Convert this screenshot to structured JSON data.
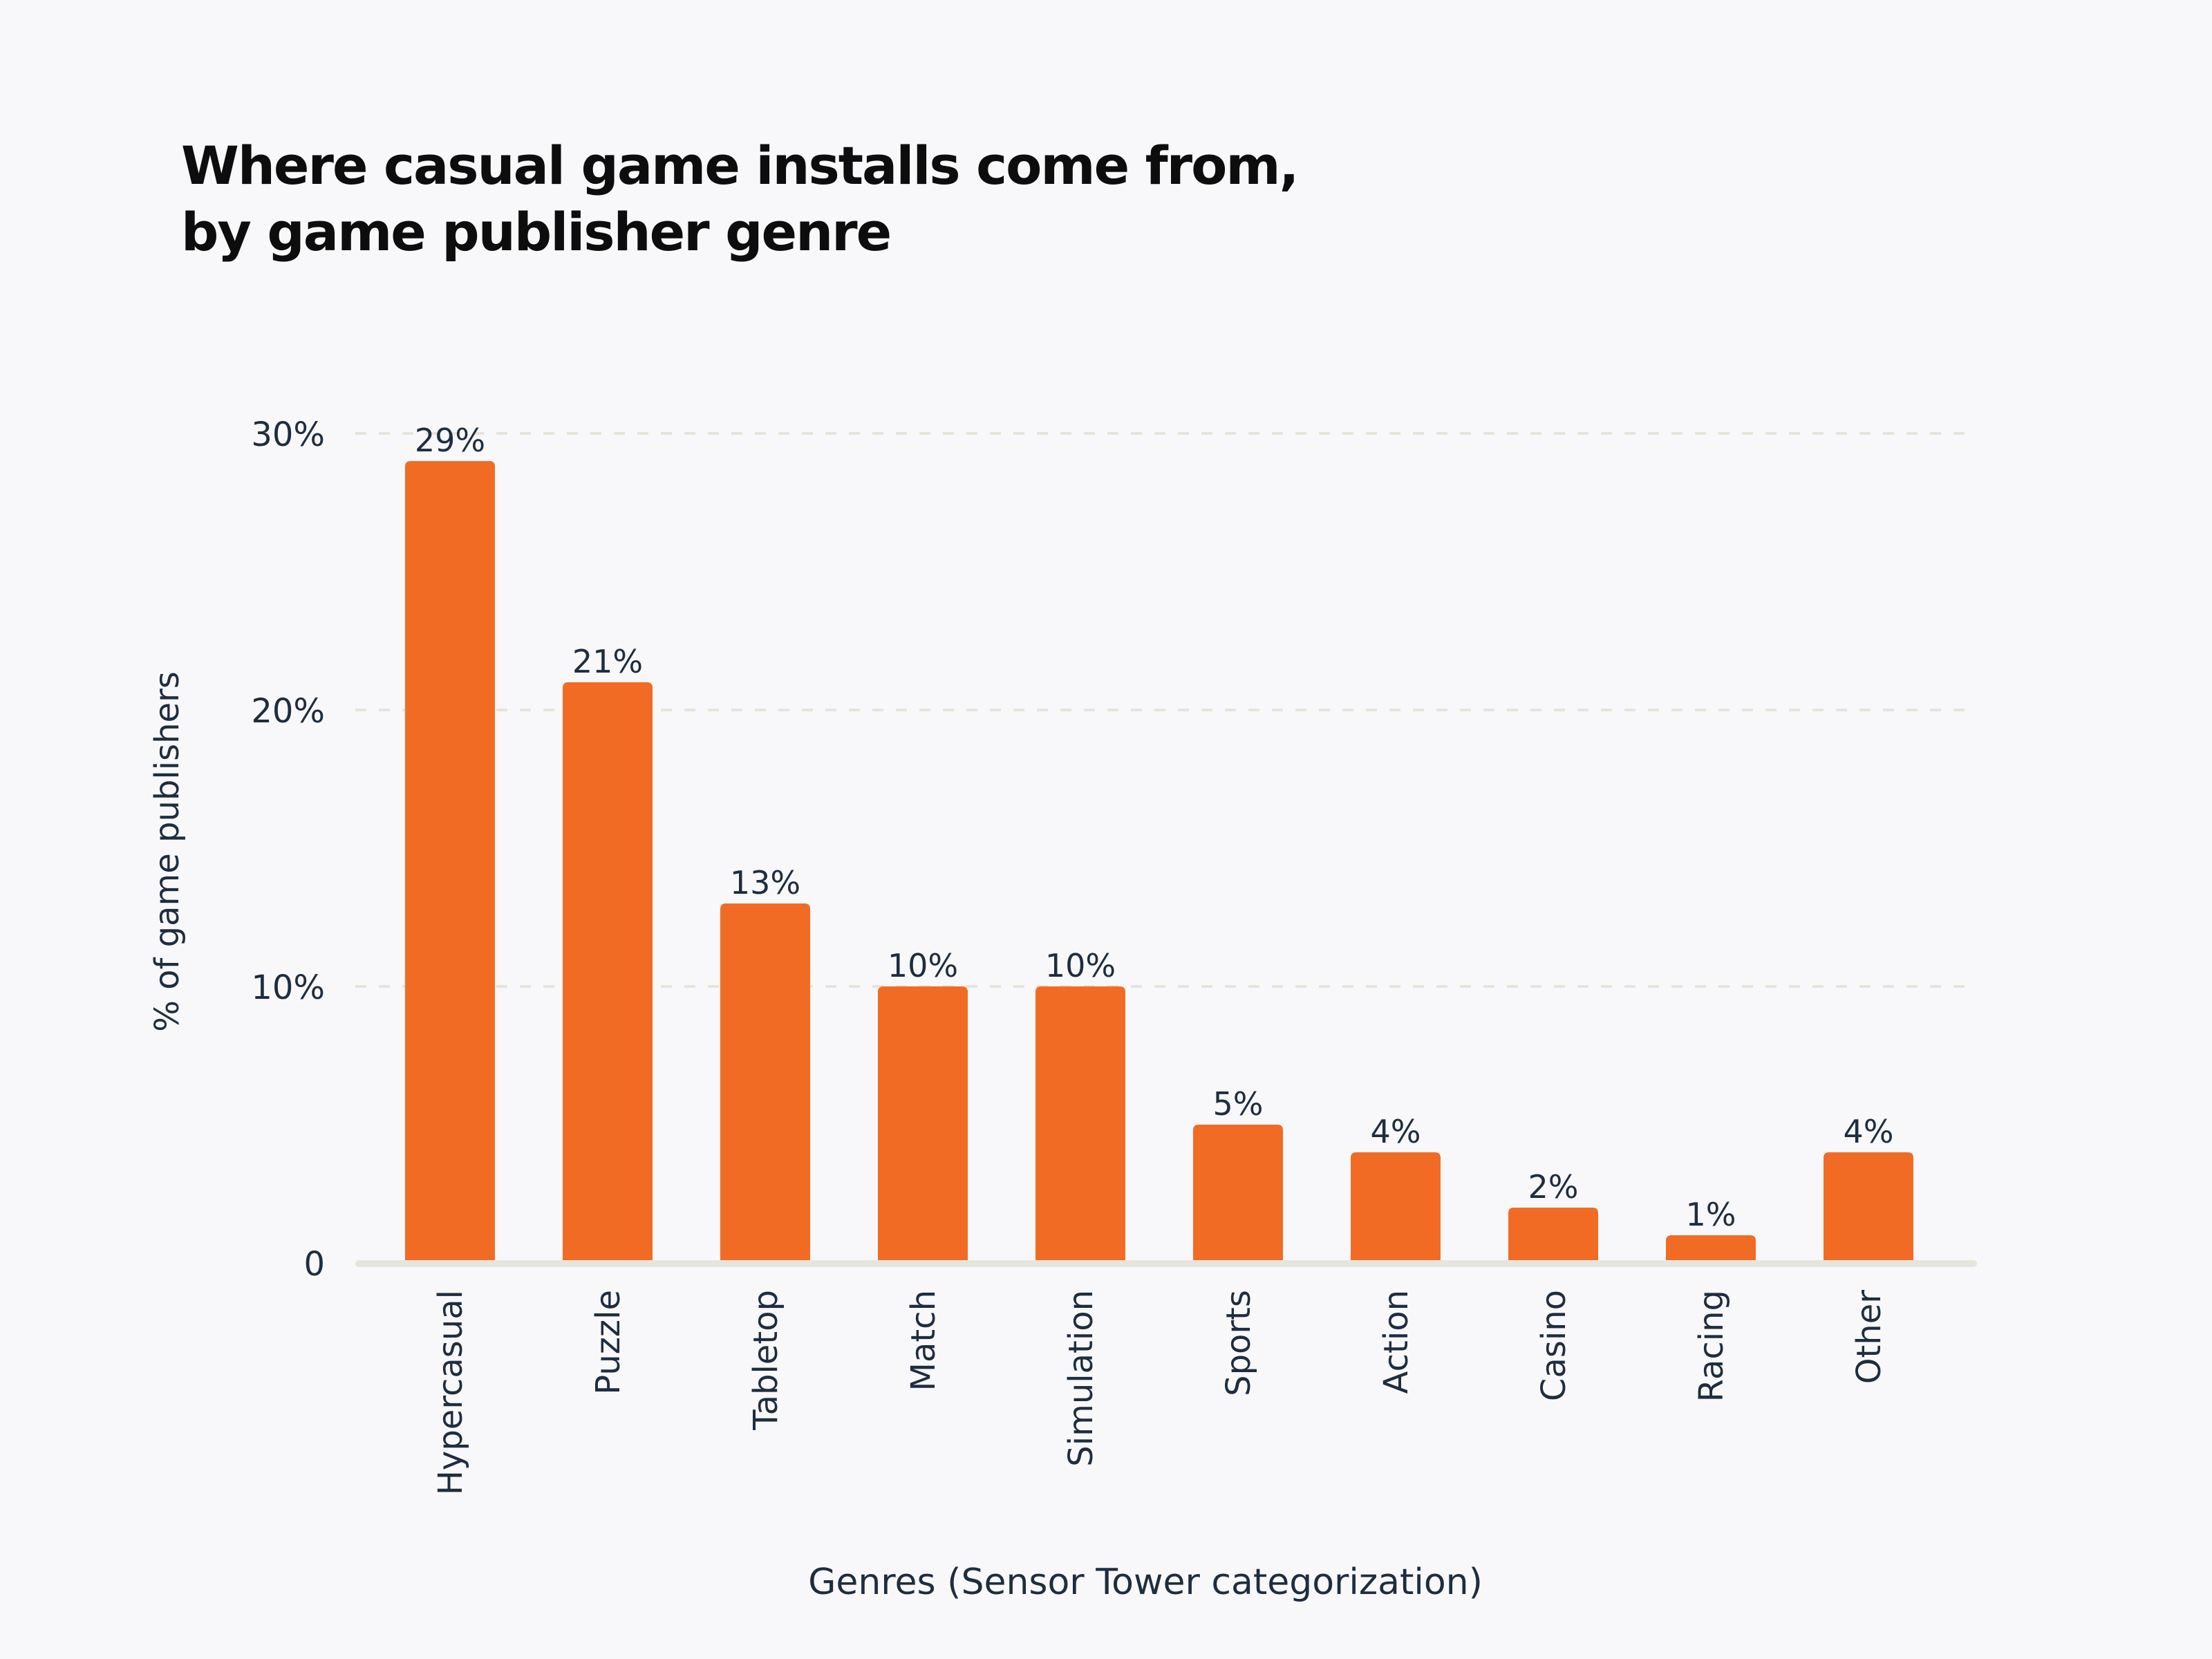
{
  "chart_data": {
    "type": "bar",
    "title_lines": [
      "Where casual game installs come from,",
      "by game publisher genre"
    ],
    "xlabel": "Genres (Sensor Tower categorization)",
    "ylabel": "% of game publishers",
    "categories": [
      "Hypercasual",
      "Puzzle",
      "Tabletop",
      "Match",
      "Simulation",
      "Sports",
      "Action",
      "Casino",
      "Racing",
      "Other"
    ],
    "values": [
      29,
      21,
      13,
      10,
      10,
      5,
      4,
      2,
      1,
      4
    ],
    "data_labels": [
      "29%",
      "21%",
      "13%",
      "10%",
      "10%",
      "5%",
      "4%",
      "2%",
      "1%",
      "4%"
    ],
    "ylim": [
      0,
      30
    ],
    "yticks": [
      0,
      10,
      20,
      30
    ],
    "ytick_labels": [
      "0",
      "10%",
      "20%",
      "30%"
    ],
    "grid": "horizontal dashed",
    "legend": "none",
    "colors": {
      "bar": "#f26b24",
      "text": "#1e2d40",
      "grid": "#e6e4da",
      "background": "#f8f8fa"
    }
  }
}
